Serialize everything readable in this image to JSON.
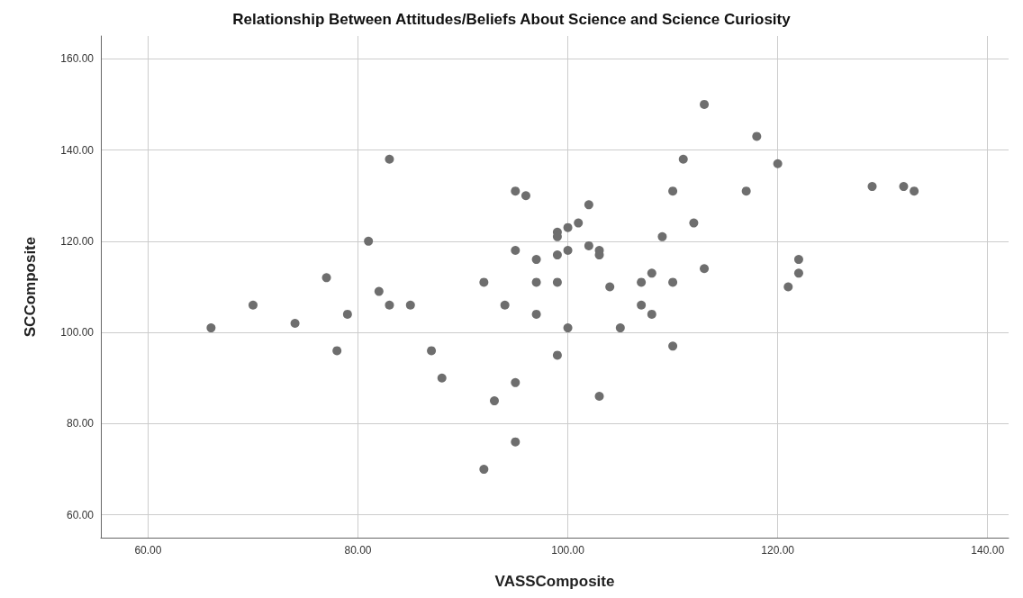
{
  "chart_data": {
    "type": "scatter",
    "title": "Relationship Between Attitudes/Beliefs About Science and Science Curiosity",
    "xlabel": "VASSComposite",
    "ylabel": "SCComposite",
    "x": [
      66,
      70,
      74,
      77,
      78,
      79,
      81,
      82,
      83,
      83,
      85,
      87,
      88,
      92,
      92,
      93,
      94,
      95,
      95,
      95,
      95,
      96,
      97,
      97,
      97,
      99,
      99,
      99,
      99,
      99,
      100,
      100,
      100,
      101,
      102,
      102,
      103,
      103,
      103,
      104,
      105,
      107,
      107,
      108,
      108,
      109,
      110,
      110,
      110,
      111,
      112,
      113,
      113,
      117,
      118,
      120,
      121,
      122,
      122,
      129,
      132,
      133
    ],
    "series": [
      {
        "color": "#6e6e6e",
        "values": [
          101,
          106,
          102,
          112,
          96,
          104,
          120,
          109,
          106,
          138,
          106,
          96,
          90,
          111,
          70,
          85,
          106,
          89,
          76,
          131,
          118,
          130,
          116,
          111,
          104,
          122,
          121,
          117,
          111,
          95,
          123,
          118,
          101,
          124,
          128,
          119,
          118,
          117,
          86,
          110,
          101,
          111,
          106,
          113,
          104,
          121,
          131,
          111,
          97,
          138,
          124,
          150,
          114,
          131,
          143,
          137,
          110,
          116,
          113,
          132,
          132,
          131
        ]
      }
    ],
    "xlim": [
      55.5,
      142
    ],
    "ylim": [
      55,
      165
    ],
    "xticks": [
      {
        "value": 60,
        "label": "60.00"
      },
      {
        "value": 80,
        "label": "80.00"
      },
      {
        "value": 100,
        "label": "100.00"
      },
      {
        "value": 120,
        "label": "120.00"
      },
      {
        "value": 140,
        "label": "140.00"
      }
    ],
    "yticks": [
      {
        "value": 60,
        "label": "60.00"
      },
      {
        "value": 80,
        "label": "80.00"
      },
      {
        "value": 100,
        "label": "100.00"
      },
      {
        "value": 120,
        "label": "120.00"
      },
      {
        "value": 140,
        "label": "140.00"
      },
      {
        "value": 160,
        "label": "160.00"
      }
    ],
    "grid": true,
    "marker": "circle"
  }
}
